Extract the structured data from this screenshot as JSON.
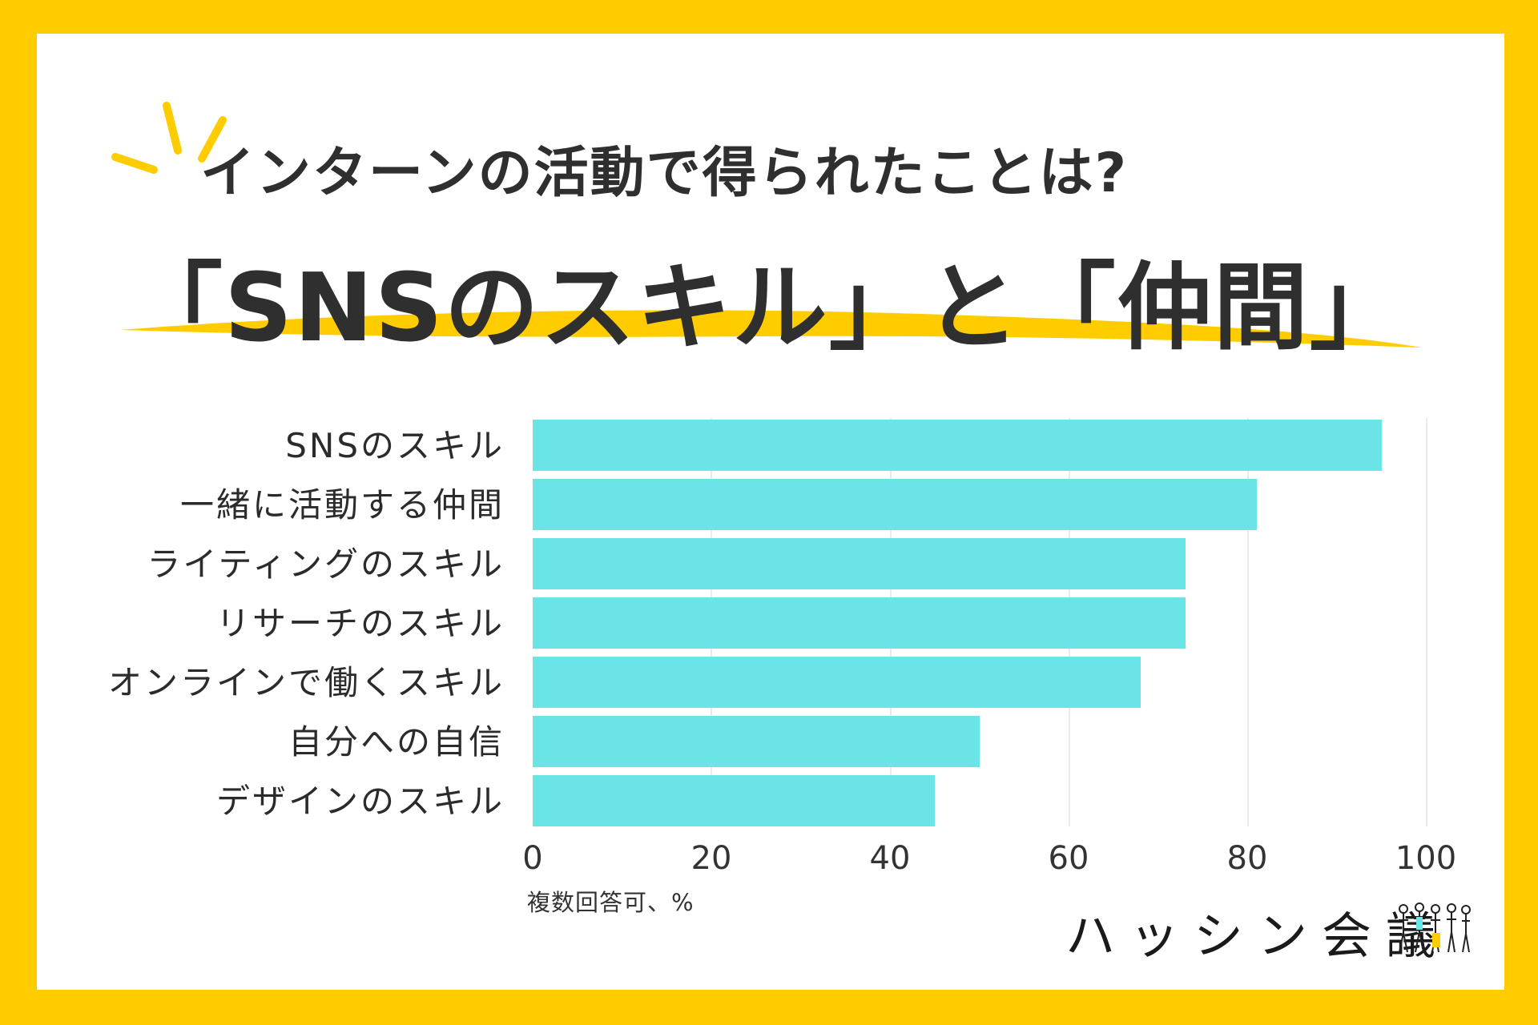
{
  "colors": {
    "frame": "#FFCC00",
    "bar": "#6AE4E6",
    "accent": "#FFCC00",
    "text": "#2f2f2f"
  },
  "header": {
    "subtitle": "インターンの活動で得られたことは?",
    "headline": "「SNSのスキル」と「仲間」"
  },
  "chart_data": {
    "type": "bar",
    "orientation": "horizontal",
    "categories": [
      "SNSのスキル",
      "一緒に活動する仲間",
      "ライティングのスキル",
      "リサーチのスキル",
      "オンラインで働くスキル",
      "自分への自信",
      "デザインのスキル"
    ],
    "values": [
      95,
      81,
      73,
      73,
      68,
      50,
      45
    ],
    "xlim": [
      0,
      100
    ],
    "xticks": [
      "0",
      "20",
      "40",
      "60",
      "80",
      "100"
    ],
    "note": "複数回答可、%"
  },
  "logo": {
    "text": "ハッシン会議",
    "figures_icon": "people-illustration-icon"
  }
}
